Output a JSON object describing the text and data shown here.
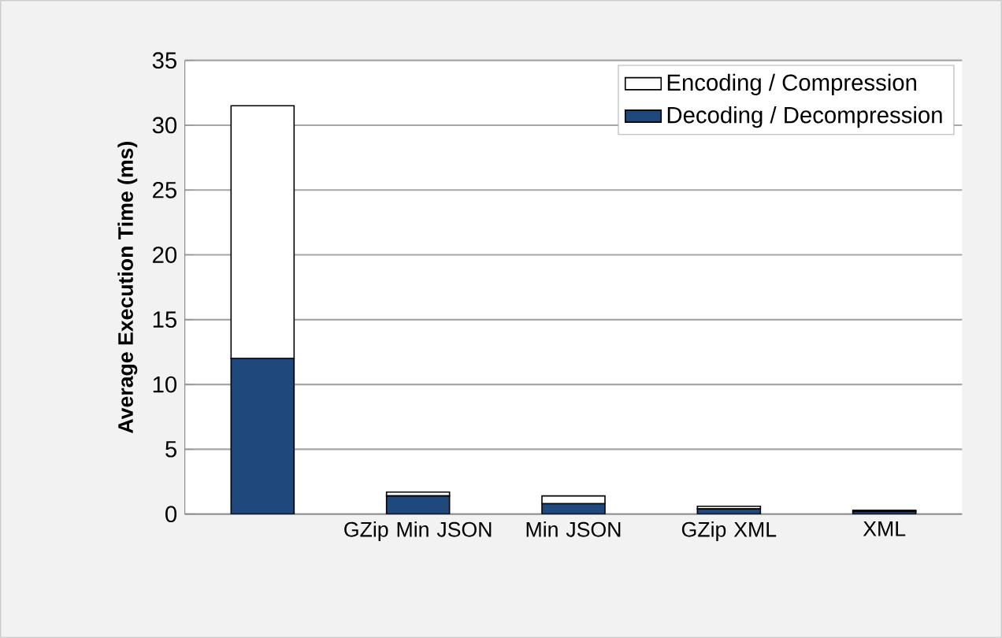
{
  "chart_data": {
    "type": "bar",
    "stacked": true,
    "ylabel": "Average Execution Time (ms)",
    "categories": [
      null,
      "GZip Min JSON",
      "Min JSON",
      "GZip XML",
      "XML"
    ],
    "series": [
      {
        "name": "Decoding / Decompression",
        "color": "#1f497d",
        "values": [
          12,
          1.4,
          0.8,
          0.4,
          0.2
        ]
      },
      {
        "name": "Encoding / Compression",
        "color": "#ffffff",
        "values": [
          19.5,
          0.3,
          0.6,
          0.2,
          0.1
        ]
      }
    ],
    "ylim": [
      0,
      35
    ],
    "yticks": [
      0,
      5,
      10,
      15,
      20,
      25,
      30,
      35
    ],
    "grid": "y",
    "legend": "top right"
  }
}
